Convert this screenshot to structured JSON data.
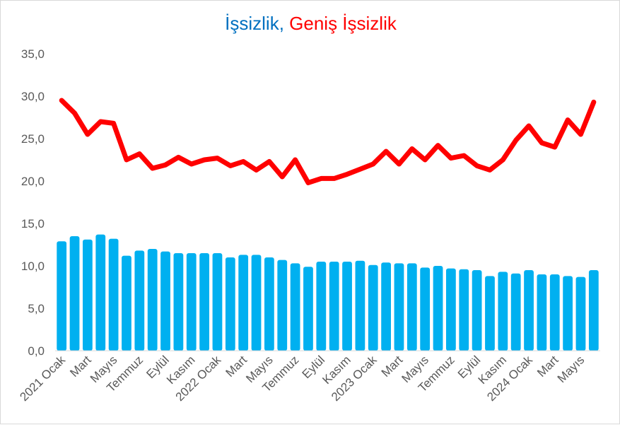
{
  "chart_data": {
    "type": "bar",
    "title_parts": [
      {
        "text": "İşsizlik",
        "color": "#0070C0"
      },
      {
        "text": ", ",
        "color": "#0070C0"
      },
      {
        "text": "Geniş İşsizlik",
        "color": "#FF0000"
      }
    ],
    "ylim": [
      0,
      35
    ],
    "yticks": [
      "0,0",
      "5,0",
      "10,0",
      "15,0",
      "20,0",
      "25,0",
      "30,0",
      "35,0"
    ],
    "grid": false,
    "x_labels": [
      {
        "i": 0,
        "text": "2021 Ocak"
      },
      {
        "i": 2,
        "text": "Mart"
      },
      {
        "i": 4,
        "text": "Mayıs"
      },
      {
        "i": 6,
        "text": "Temmuz"
      },
      {
        "i": 8,
        "text": "Eylül"
      },
      {
        "i": 10,
        "text": "Kasım"
      },
      {
        "i": 12,
        "text": "2022 Ocak"
      },
      {
        "i": 14,
        "text": "Mart"
      },
      {
        "i": 16,
        "text": "Mayıs"
      },
      {
        "i": 18,
        "text": "Temmuz"
      },
      {
        "i": 20,
        "text": "Eylül"
      },
      {
        "i": 22,
        "text": "Kasım"
      },
      {
        "i": 24,
        "text": "2023 Ocak"
      },
      {
        "i": 26,
        "text": "Mart"
      },
      {
        "i": 28,
        "text": "Mayıs"
      },
      {
        "i": 30,
        "text": "Temmuz"
      },
      {
        "i": 32,
        "text": "Eylül"
      },
      {
        "i": 34,
        "text": "Kasım"
      },
      {
        "i": 36,
        "text": "2024 Ocak"
      },
      {
        "i": 38,
        "text": "Mart"
      },
      {
        "i": 40,
        "text": "Mayıs"
      }
    ],
    "series": [
      {
        "name": "İşsizlik",
        "type": "bar",
        "color": "#00B0F0",
        "values": [
          12.9,
          13.5,
          13.1,
          13.7,
          13.2,
          11.2,
          11.8,
          12.0,
          11.7,
          11.5,
          11.5,
          11.5,
          11.5,
          11.0,
          11.3,
          11.3,
          11.0,
          10.7,
          10.3,
          9.9,
          10.5,
          10.5,
          10.5,
          10.6,
          10.1,
          10.4,
          10.3,
          10.3,
          9.8,
          10.0,
          9.7,
          9.6,
          9.5,
          8.8,
          9.3,
          9.1,
          9.5,
          9.0,
          9.0,
          8.8,
          8.7,
          9.5
        ]
      },
      {
        "name": "Geniş İşsizlik",
        "type": "line",
        "color": "#FF0000",
        "values": [
          29.5,
          28.0,
          25.5,
          27.0,
          26.8,
          22.5,
          23.2,
          21.5,
          21.9,
          22.8,
          22.0,
          22.5,
          22.7,
          21.8,
          22.3,
          21.3,
          22.3,
          20.5,
          22.5,
          19.8,
          20.3,
          20.3,
          20.8,
          21.4,
          22.0,
          23.5,
          22.0,
          23.8,
          22.5,
          24.2,
          22.7,
          23.0,
          21.8,
          21.3,
          22.5,
          24.8,
          26.5,
          24.5,
          24.0,
          27.2,
          25.5,
          29.3
        ]
      }
    ]
  }
}
